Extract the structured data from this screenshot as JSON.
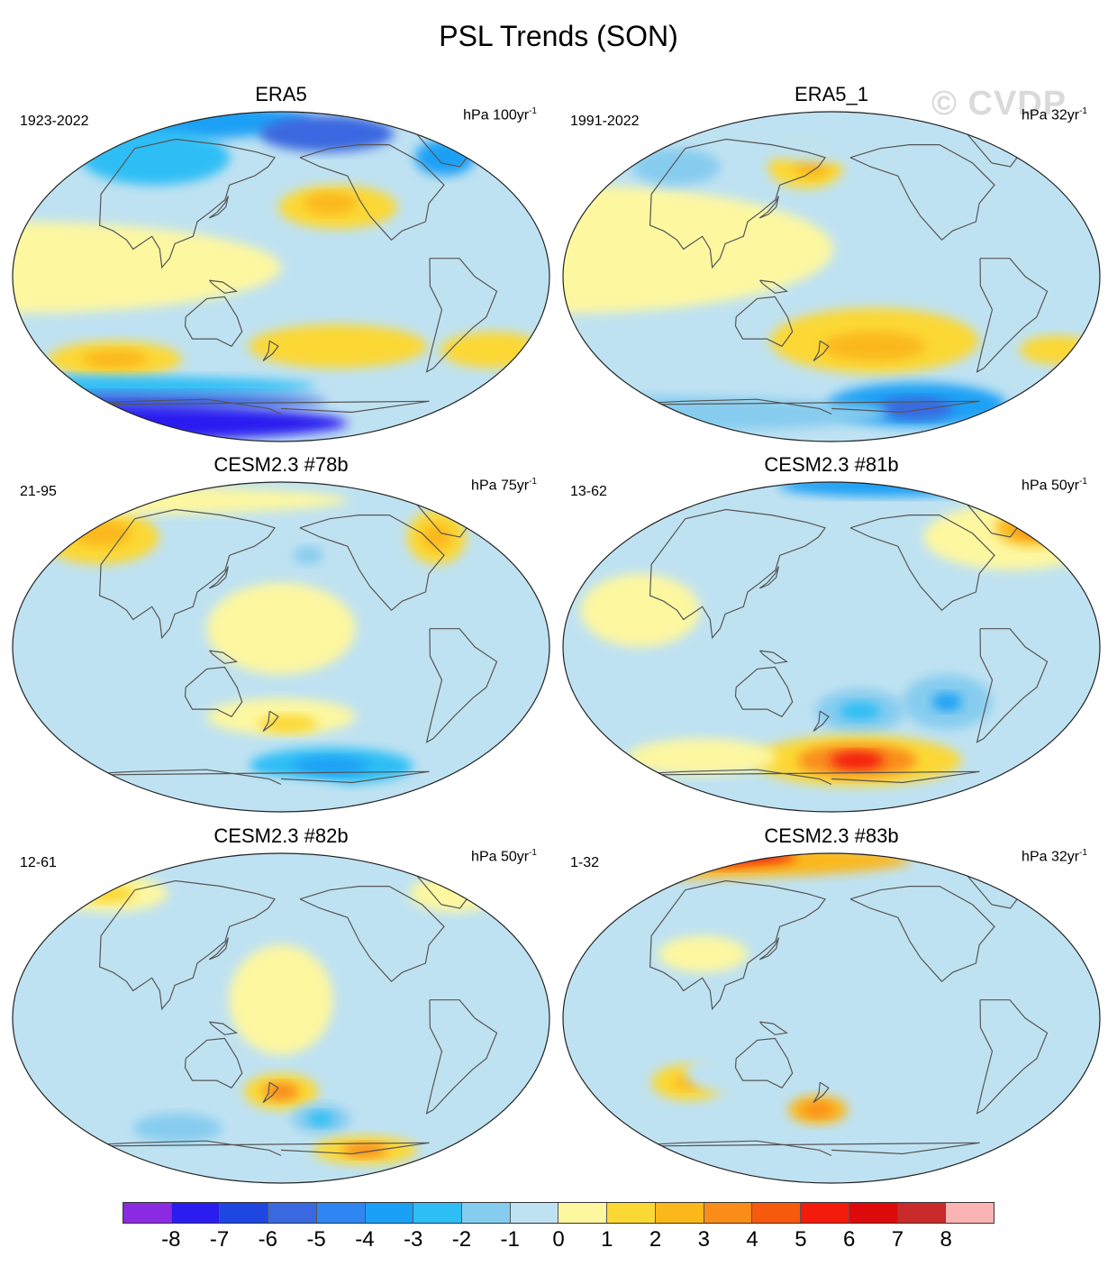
{
  "chart_data": {
    "type": "heatmap",
    "title": "PSL Trends (SON)",
    "watermark": "© CVDP",
    "colorbar": {
      "ticks": [
        "-8",
        "-7",
        "-6",
        "-5",
        "-4",
        "-3",
        "-2",
        "-1",
        "0",
        "1",
        "2",
        "3",
        "4",
        "5",
        "6",
        "7",
        "8"
      ],
      "colors": [
        "#8a2be2",
        "#2b1cf0",
        "#1e46e0",
        "#3a68e0",
        "#2f86f2",
        "#1aa0f5",
        "#2dbef5",
        "#86ccef",
        "#bfe2f2",
        "#fdf7a0",
        "#fcd835",
        "#fbb81a",
        "#fa8c1a",
        "#f75a0c",
        "#f41b0c",
        "#dc0a0a",
        "#c92a2a",
        "#fbb4b4"
      ]
    },
    "panels": [
      {
        "id": "era5",
        "title": "ERA5",
        "period": "1923-2022",
        "units": "hPa 100yr",
        "units_exp": "-1",
        "blobs": [
          {
            "lon": 0,
            "lat": 85,
            "a": 150,
            "b": 12,
            "v": -4
          },
          {
            "lon": -140,
            "lat": 78,
            "a": 45,
            "b": 10,
            "v": -6
          },
          {
            "lon": 80,
            "lat": 65,
            "a": 50,
            "b": 15,
            "v": -3
          },
          {
            "lon": -50,
            "lat": 65,
            "a": 20,
            "b": 10,
            "v": -4
          },
          {
            "lon": -140,
            "lat": 38,
            "a": 40,
            "b": 12,
            "v": 2
          },
          {
            "lon": -145,
            "lat": 40,
            "a": 18,
            "b": 6,
            "v": 3
          },
          {
            "lon": 130,
            "lat": 30,
            "a": 25,
            "b": 10,
            "v": -1
          },
          {
            "lon": 0,
            "lat": 5,
            "a": 180,
            "b": 25,
            "v": 1
          },
          {
            "lon": -140,
            "lat": -38,
            "a": 60,
            "b": 12,
            "v": 2
          },
          {
            "lon": 60,
            "lat": -45,
            "a": 45,
            "b": 10,
            "v": 2
          },
          {
            "lon": 60,
            "lat": -45,
            "a": 22,
            "b": 5,
            "v": 3
          },
          {
            "lon": -30,
            "lat": -40,
            "a": 35,
            "b": 10,
            "v": 2
          },
          {
            "lon": 0,
            "lat": -60,
            "a": 180,
            "b": 6,
            "v": -3
          },
          {
            "lon": 0,
            "lat": -68,
            "a": 180,
            "b": 5,
            "v": -6
          },
          {
            "lon": 0,
            "lat": -80,
            "a": 180,
            "b": 10,
            "v": -8
          }
        ]
      },
      {
        "id": "era5-1",
        "title": "ERA5_1",
        "period": "1991-2022",
        "units": "hPa 32yr",
        "units_exp": "-1",
        "blobs": [
          {
            "lon": 0,
            "lat": 15,
            "a": 180,
            "b": 35,
            "v": 1
          },
          {
            "lon": 160,
            "lat": 60,
            "a": 25,
            "b": 12,
            "v": 2
          },
          {
            "lon": 165,
            "lat": 60,
            "a": 12,
            "b": 6,
            "v": 3
          },
          {
            "lon": 60,
            "lat": 60,
            "a": 30,
            "b": 10,
            "v": -2
          },
          {
            "lon": -170,
            "lat": 70,
            "a": 60,
            "b": 8,
            "v": -1
          },
          {
            "lon": -150,
            "lat": -35,
            "a": 70,
            "b": 18,
            "v": 2
          },
          {
            "lon": -150,
            "lat": -38,
            "a": 35,
            "b": 8,
            "v": 3
          },
          {
            "lon": -20,
            "lat": -40,
            "a": 25,
            "b": 8,
            "v": 2
          },
          {
            "lon": 80,
            "lat": -40,
            "a": 40,
            "b": 10,
            "v": -1
          },
          {
            "lon": -110,
            "lat": -70,
            "a": 60,
            "b": 12,
            "v": -4
          },
          {
            "lon": -110,
            "lat": -72,
            "a": 25,
            "b": 6,
            "v": -6
          },
          {
            "lon": 0,
            "lat": -75,
            "a": 180,
            "b": 10,
            "v": -2
          }
        ]
      },
      {
        "id": "cesm-78b",
        "title": "CESM2.3 #78b",
        "period": "21-95",
        "units": "hPa 75yr",
        "units_exp": "-1",
        "blobs": [
          {
            "lon": 40,
            "lat": 60,
            "a": 40,
            "b": 15,
            "v": 2
          },
          {
            "lon": 40,
            "lat": 62,
            "a": 20,
            "b": 7,
            "v": 3
          },
          {
            "lon": -60,
            "lat": 60,
            "a": 20,
            "b": 15,
            "v": 2
          },
          {
            "lon": -60,
            "lat": 60,
            "a": 10,
            "b": 7,
            "v": 3
          },
          {
            "lon": -160,
            "lat": 50,
            "a": 35,
            "b": 12,
            "v": -1
          },
          {
            "lon": -160,
            "lat": 50,
            "a": 10,
            "b": 5,
            "v": -2
          },
          {
            "lon": 0,
            "lat": 80,
            "a": 180,
            "b": 8,
            "v": 1
          },
          {
            "lon": 180,
            "lat": 10,
            "a": 50,
            "b": 25,
            "v": 1
          },
          {
            "lon": 180,
            "lat": -38,
            "a": 50,
            "b": 10,
            "v": 1
          },
          {
            "lon": -175,
            "lat": -42,
            "a": 20,
            "b": 5,
            "v": 2
          },
          {
            "lon": -140,
            "lat": -65,
            "a": 55,
            "b": 10,
            "v": -3
          },
          {
            "lon": -140,
            "lat": -65,
            "a": 25,
            "b": 5,
            "v": -4
          },
          {
            "lon": 0,
            "lat": -78,
            "a": 180,
            "b": 10,
            "v": -1
          }
        ]
      },
      {
        "id": "cesm-81b",
        "title": "CESM2.3 #81b",
        "period": "13-62",
        "units": "hPa 50yr",
        "units_exp": "-1",
        "blobs": [
          {
            "lon": -130,
            "lat": 88,
            "a": 70,
            "b": 6,
            "v": -4
          },
          {
            "lon": -40,
            "lat": 60,
            "a": 60,
            "b": 18,
            "v": 1
          },
          {
            "lon": -20,
            "lat": 65,
            "a": 25,
            "b": 10,
            "v": 3
          },
          {
            "lon": -20,
            "lat": 65,
            "a": 12,
            "b": 5,
            "v": 4
          },
          {
            "lon": 50,
            "lat": 20,
            "a": 40,
            "b": 20,
            "v": 1
          },
          {
            "lon": -160,
            "lat": -35,
            "a": 30,
            "b": 12,
            "v": -2
          },
          {
            "lon": -160,
            "lat": -35,
            "a": 14,
            "b": 5,
            "v": -3
          },
          {
            "lon": -100,
            "lat": -30,
            "a": 30,
            "b": 15,
            "v": -2
          },
          {
            "lon": -100,
            "lat": -30,
            "a": 10,
            "b": 5,
            "v": -4
          },
          {
            "lon": -160,
            "lat": -62,
            "a": 70,
            "b": 14,
            "v": 2
          },
          {
            "lon": -160,
            "lat": -62,
            "a": 40,
            "b": 9,
            "v": 4
          },
          {
            "lon": -160,
            "lat": -62,
            "a": 18,
            "b": 5,
            "v": 6
          },
          {
            "lon": 80,
            "lat": -60,
            "a": 50,
            "b": 10,
            "v": 1
          }
        ]
      },
      {
        "id": "cesm-82b",
        "title": "CESM2.3 #82b",
        "period": "12-61",
        "units": "hPa 50yr",
        "units_exp": "-1",
        "blobs": [
          {
            "lon": 40,
            "lat": 68,
            "a": 40,
            "b": 10,
            "v": 1
          },
          {
            "lon": 40,
            "lat": 68,
            "a": 18,
            "b": 5,
            "v": 2
          },
          {
            "lon": -40,
            "lat": 68,
            "a": 30,
            "b": 10,
            "v": 1
          },
          {
            "lon": -10,
            "lat": 75,
            "a": 12,
            "b": 5,
            "v": 2
          },
          {
            "lon": 180,
            "lat": 10,
            "a": 35,
            "b": 30,
            "v": 1
          },
          {
            "lon": 180,
            "lat": -40,
            "a": 25,
            "b": 10,
            "v": 2
          },
          {
            "lon": 180,
            "lat": -40,
            "a": 12,
            "b": 5,
            "v": 4
          },
          {
            "lon": -150,
            "lat": -55,
            "a": 20,
            "b": 8,
            "v": -2
          },
          {
            "lon": -150,
            "lat": -55,
            "a": 9,
            "b": 4,
            "v": -3
          },
          {
            "lon": 100,
            "lat": -60,
            "a": 30,
            "b": 8,
            "v": -2
          },
          {
            "lon": -110,
            "lat": -72,
            "a": 35,
            "b": 8,
            "v": 2
          },
          {
            "lon": -110,
            "lat": -72,
            "a": 15,
            "b": 4,
            "v": 4
          }
        ]
      },
      {
        "id": "cesm-83b",
        "title": "CESM2.3 #83b",
        "period": "1-32",
        "units": "hPa 32yr",
        "units_exp": "-1",
        "blobs": [
          {
            "lon": 0,
            "lat": 86,
            "a": 180,
            "b": 10,
            "v": 3
          },
          {
            "lon": 0,
            "lat": 88,
            "a": 100,
            "b": 6,
            "v": 6
          },
          {
            "lon": 90,
            "lat": 35,
            "a": 30,
            "b": 10,
            "v": 1
          },
          {
            "lon": -150,
            "lat": 60,
            "a": 30,
            "b": 12,
            "v": -1
          },
          {
            "lon": 80,
            "lat": -35,
            "a": 25,
            "b": 10,
            "v": 2
          },
          {
            "lon": 80,
            "lat": -35,
            "a": 10,
            "b": 4,
            "v": 3
          },
          {
            "lon": 170,
            "lat": -50,
            "a": 20,
            "b": 8,
            "v": 3
          },
          {
            "lon": 170,
            "lat": -50,
            "a": 10,
            "b": 4,
            "v": 4
          },
          {
            "lon": 120,
            "lat": -30,
            "a": 40,
            "b": 12,
            "v": -1
          },
          {
            "lon": 0,
            "lat": -75,
            "a": 180,
            "b": 10,
            "v": -1
          }
        ]
      }
    ]
  }
}
